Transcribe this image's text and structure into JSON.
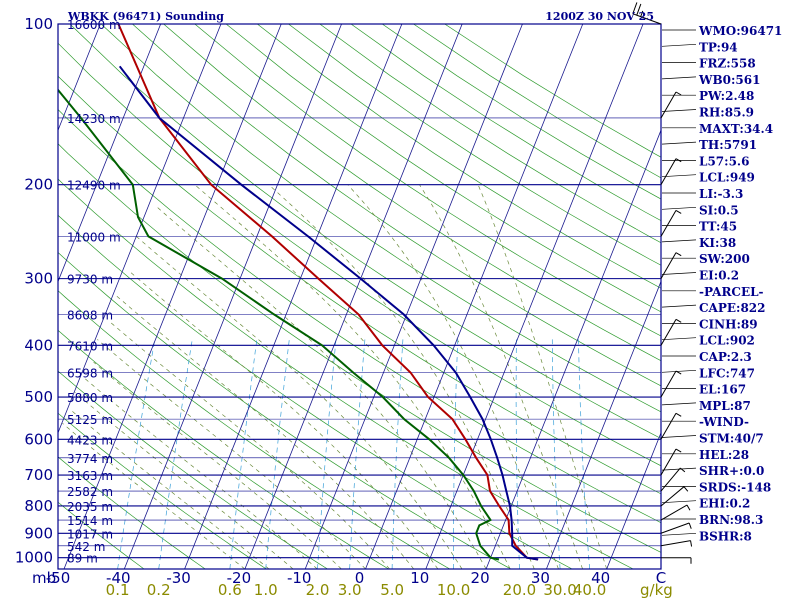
{
  "chart_data": {
    "type": "skew-t",
    "title": "WBKK (96471) Sounding",
    "time": "1200Z 30 NOV 25",
    "pressure_unit_label": "mb",
    "mixing_unit_label": "g/kg",
    "pressure_ticks": [
      "100",
      "200",
      "300",
      "400",
      "500",
      "600",
      "700",
      "800",
      "900",
      "1000"
    ],
    "temperature_ticks": [
      "-50",
      "-40",
      "-30",
      "-20",
      "-10",
      "0",
      "10",
      "20",
      "30",
      "40",
      "C"
    ],
    "mixing_ratio_ticks": [
      "0.1",
      "0.2",
      "0.6",
      "1.0",
      "2.0",
      "3.0",
      "5.0",
      "10.0",
      "20.0",
      "30.0",
      "40.0"
    ],
    "height_labels": [
      {
        "p": 100,
        "label": "16600 m"
      },
      {
        "p": 150,
        "label": "14230 m"
      },
      {
        "p": 200,
        "label": "12490 m"
      },
      {
        "p": 250,
        "label": "11000 m"
      },
      {
        "p": 300,
        "label": "9730 m"
      },
      {
        "p": 350,
        "label": "8608 m"
      },
      {
        "p": 400,
        "label": "7610 m"
      },
      {
        "p": 450,
        "label": "6598 m"
      },
      {
        "p": 500,
        "label": "5880 m"
      },
      {
        "p": 550,
        "label": "5125 m"
      },
      {
        "p": 600,
        "label": "4423 m"
      },
      {
        "p": 650,
        "label": "3774 m"
      },
      {
        "p": 700,
        "label": "3163 m"
      },
      {
        "p": 750,
        "label": "2582 m"
      },
      {
        "p": 800,
        "label": "2035 m"
      },
      {
        "p": 850,
        "label": "1514 m"
      },
      {
        "p": 900,
        "label": "1017 m"
      },
      {
        "p": 950,
        "label": "542 m"
      },
      {
        "p": 1000,
        "label": "89 m"
      }
    ],
    "series": [
      {
        "name": "Temperature",
        "color": "#b00000",
        "points": [
          [
            1008,
            28
          ],
          [
            1000,
            26
          ],
          [
            950,
            23.4
          ],
          [
            900,
            21.5
          ],
          [
            850,
            20.5
          ],
          [
            800,
            18
          ],
          [
            750,
            15.5
          ],
          [
            700,
            14
          ],
          [
            650,
            11
          ],
          [
            600,
            8
          ],
          [
            550,
            4.5
          ],
          [
            500,
            -1
          ],
          [
            450,
            -5.5
          ],
          [
            400,
            -12
          ],
          [
            350,
            -18
          ],
          [
            300,
            -27
          ],
          [
            250,
            -37.5
          ],
          [
            200,
            -51
          ],
          [
            150,
            -64
          ],
          [
            100,
            -77
          ]
        ]
      },
      {
        "name": "Dew point",
        "color": "#006000",
        "points": [
          [
            1008,
            21.5
          ],
          [
            1000,
            20
          ],
          [
            950,
            17.5
          ],
          [
            900,
            16
          ],
          [
            870,
            16
          ],
          [
            850,
            17.5
          ],
          [
            800,
            15
          ],
          [
            750,
            12.8
          ],
          [
            700,
            10
          ],
          [
            650,
            6.5
          ],
          [
            600,
            2
          ],
          [
            550,
            -3.5
          ],
          [
            500,
            -8.5
          ],
          [
            450,
            -15
          ],
          [
            400,
            -22
          ],
          [
            350,
            -32
          ],
          [
            300,
            -43
          ],
          [
            250,
            -58
          ],
          [
            230,
            -61
          ],
          [
            200,
            -64
          ],
          [
            150,
            -77
          ],
          [
            100,
            -96
          ]
        ]
      },
      {
        "name": "Parcel",
        "color": "#00008b",
        "points": [
          [
            1008,
            28
          ],
          [
            1000,
            26
          ],
          [
            950,
            22.8
          ],
          [
            902,
            22
          ],
          [
            850,
            21
          ],
          [
            800,
            19.8
          ],
          [
            750,
            18.2
          ],
          [
            700,
            16.5
          ],
          [
            650,
            14.5
          ],
          [
            600,
            12.2
          ],
          [
            550,
            9.5
          ],
          [
            500,
            6
          ],
          [
            450,
            2
          ],
          [
            400,
            -3.5
          ],
          [
            350,
            -10.5
          ],
          [
            300,
            -20
          ],
          [
            250,
            -31.5
          ],
          [
            200,
            -46
          ],
          [
            150,
            -64
          ],
          [
            120,
            -74
          ]
        ]
      }
    ],
    "wind_barbs": [
      {
        "p": 1000,
        "dir": 90,
        "spd": 5
      },
      {
        "p": 950,
        "dir": 80,
        "spd": 5
      },
      {
        "p": 900,
        "dir": 70,
        "spd": 5
      },
      {
        "p": 850,
        "dir": 60,
        "spd": 5
      },
      {
        "p": 800,
        "dir": 50,
        "spd": 5
      },
      {
        "p": 750,
        "dir": 40,
        "spd": 5
      },
      {
        "p": 700,
        "dir": 30,
        "spd": 5
      },
      {
        "p": 600,
        "dir": 30,
        "spd": 5
      },
      {
        "p": 500,
        "dir": 30,
        "spd": 5
      },
      {
        "p": 400,
        "dir": 30,
        "spd": 5
      },
      {
        "p": 300,
        "dir": 30,
        "spd": 5
      },
      {
        "p": 250,
        "dir": 30,
        "spd": 5
      },
      {
        "p": 200,
        "dir": 30,
        "spd": 5
      },
      {
        "p": 150,
        "dir": 30,
        "spd": 5
      },
      {
        "p": 100,
        "dir": 290,
        "spd": 25
      }
    ],
    "stats": [
      "WMO:96471",
      "TP:94",
      "FRZ:558",
      "WB0:561",
      "PW:2.48",
      "RH:85.9",
      "MAXT:34.4",
      "TH:5791",
      "L57:5.6",
      "LCL:949",
      "LI:-3.3",
      "SI:0.5",
      "TT:45",
      "KI:38",
      "SW:200",
      "EI:0.2",
      "-PARCEL-",
      "CAPE:822",
      "CINH:89",
      "LCL:902",
      "CAP:2.3",
      "LFC:747",
      "EL:167",
      "MPL:87",
      "-WIND-",
      "STM:40/7",
      "HEL:28",
      "SHR+:0.0",
      "SRDS:-148",
      "EHI:0.2",
      "BRN:98.3",
      "BSHR:8"
    ]
  }
}
